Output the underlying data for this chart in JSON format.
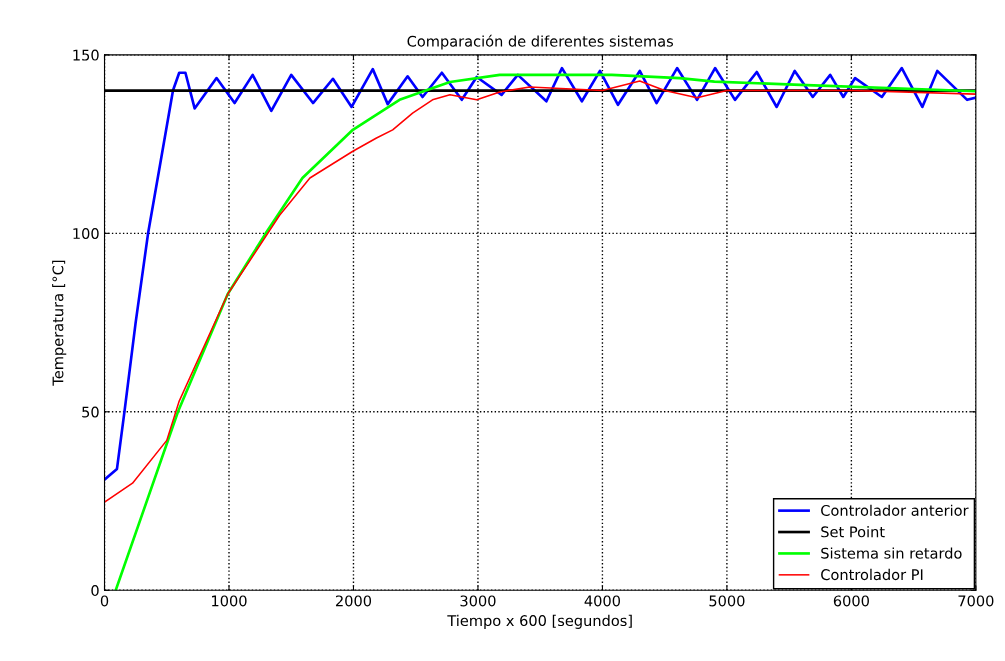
{
  "chart_data": {
    "type": "line",
    "title": "Comparación de diferentes sistemas",
    "xlabel": "Tiempo x 600 [segundos]",
    "ylabel": "Temperatura [°C]",
    "xlim": [
      0,
      7000
    ],
    "ylim": [
      0,
      150
    ],
    "xticks": [
      0,
      1000,
      2000,
      3000,
      4000,
      5000,
      6000,
      7000
    ],
    "yticks": [
      0,
      50,
      100,
      150
    ],
    "grid": true,
    "legend": "bottom right",
    "marker": "none",
    "line_style": "solid",
    "series": [
      {
        "name": "Controlador anterior",
        "color": "#0000ff",
        "x": [
          0,
          100,
          160,
          250,
          350,
          450,
          550,
          600,
          650,
          724,
          900,
          1045,
          1190,
          1340,
          1500,
          1675,
          1835,
          1985,
          2155,
          2275,
          2435,
          2555,
          2710,
          2870,
          2990,
          3190,
          3320,
          3550,
          3675,
          3835,
          3980,
          4125,
          4300,
          4435,
          4600,
          4760,
          4905,
          5065,
          5240,
          5400,
          5545,
          5690,
          5830,
          5935,
          6030,
          6245,
          6405,
          6570,
          6690,
          6930,
          7000
        ],
        "values": [
          31,
          34,
          50,
          75,
          100,
          120,
          140,
          145,
          145,
          135,
          143.5,
          136.5,
          144.4,
          134.3,
          144.4,
          136.5,
          143.3,
          135.4,
          146,
          136.2,
          144,
          138.2,
          145,
          137.4,
          143.8,
          138.8,
          144.4,
          137,
          146.3,
          137,
          145.5,
          136,
          145.5,
          136.5,
          146.3,
          137.4,
          146.3,
          137.4,
          145.2,
          135.4,
          145.5,
          138.2,
          144.4,
          138.2,
          143.5,
          138.2,
          146.3,
          135.4,
          145.5,
          137.4,
          138
        ]
      },
      {
        "name": "Set Point",
        "color": "#000000",
        "x": [
          0,
          7000
        ],
        "values": [
          140,
          140
        ]
      },
      {
        "name": "Sistema sin retardo",
        "color": "#00ff00",
        "x": [
          90,
          590,
          990,
          1295,
          1590,
          1995,
          2370,
          2775,
          3175,
          4075,
          4620,
          4900,
          5590,
          7000
        ],
        "values": [
          0,
          50,
          83,
          100,
          115.5,
          129,
          137.4,
          142.4,
          144.4,
          144.4,
          143.5,
          142.5,
          141.6,
          139.8
        ]
      },
      {
        "name": "Controlador PI",
        "color": "#ff0000",
        "x": [
          0,
          225,
          500,
          600,
          990,
          1180,
          1405,
          1650,
          1995,
          2185,
          2315,
          2475,
          2635,
          2775,
          2990,
          3175,
          3415,
          4000,
          4300,
          4500,
          4760,
          5000,
          6000,
          7000
        ],
        "values": [
          24.7,
          30,
          42,
          53,
          83,
          93,
          105,
          115.5,
          123,
          126.7,
          129,
          133.7,
          137.4,
          138.8,
          137.4,
          139.6,
          141,
          140,
          142.7,
          140,
          138,
          140,
          140,
          139
        ]
      }
    ]
  }
}
